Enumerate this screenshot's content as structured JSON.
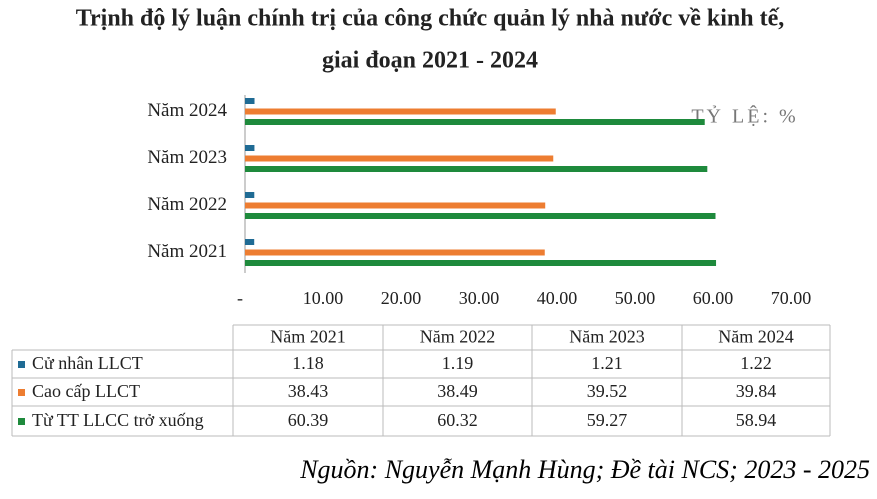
{
  "chart_data": {
    "type": "hbar",
    "title": [
      "Trịnh độ lý luận chính trị của công chức quản lý nhà nước về kinh tế,",
      "giai đoạn 2021 - 2024"
    ],
    "categories": [
      "Năm 2021",
      "Năm 2022",
      "Năm 2023",
      "Năm 2024"
    ],
    "series": [
      {
        "name": "Cử nhân LLCT",
        "color": "#1f6b94",
        "values": [
          1.18,
          1.19,
          1.21,
          1.22
        ]
      },
      {
        "name": "Cao cấp LLCT",
        "color": "#ed7d31",
        "values": [
          38.43,
          38.49,
          39.52,
          39.84
        ]
      },
      {
        "name": "Từ TT LLCC trở xuống",
        "color": "#1e8a3c",
        "values": [
          60.39,
          60.32,
          59.27,
          58.94
        ]
      }
    ],
    "xlim": [
      0,
      70
    ],
    "xticks": [
      {
        "value": 0,
        "label": "-"
      },
      {
        "value": 10,
        "label": "10.00"
      },
      {
        "value": 20,
        "label": "20.00"
      },
      {
        "value": 30,
        "label": "30.00"
      },
      {
        "value": 40,
        "label": "40.00"
      },
      {
        "value": 50,
        "label": "50.00"
      },
      {
        "value": 60,
        "label": "60.00"
      },
      {
        "value": 70,
        "label": "70.00"
      }
    ],
    "axis_annotation": "TỶ LỆ: %",
    "source": "Nguồn: Nguyễn Mạnh Hùng; Đề tài NCS; 2023 - 2025"
  }
}
